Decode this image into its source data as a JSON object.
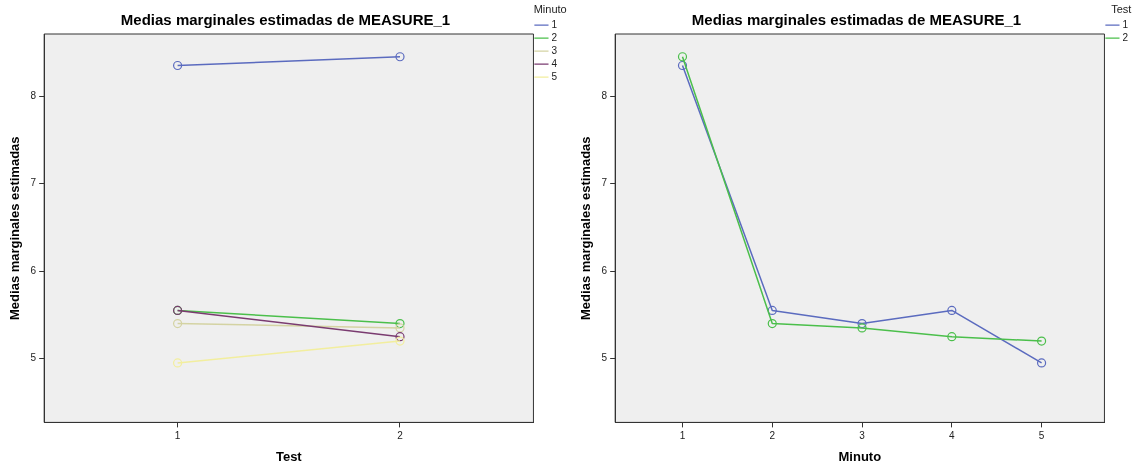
{
  "chart_data": [
    {
      "type": "line",
      "title": "Medias marginales estimadas de MEASURE_1",
      "xlabel": "Test",
      "ylabel": "Medias marginales estimadas",
      "legend_title": "Minuto",
      "x": [
        1,
        2
      ],
      "xlim": [
        0.4,
        2.6
      ],
      "xticks": [
        1,
        2
      ],
      "ylim": [
        4.27,
        8.71
      ],
      "yticks": [
        5,
        6,
        7,
        8
      ],
      "grid": false,
      "legend": "top right",
      "marker": "circle",
      "line_style": "solid",
      "series": [
        {
          "name": "1",
          "color": "#5b6bbf",
          "values": [
            8.35,
            8.45
          ]
        },
        {
          "name": "2",
          "color": "#4bbf4b",
          "values": [
            5.55,
            5.4
          ]
        },
        {
          "name": "3",
          "color": "#d4d3a3",
          "values": [
            5.4,
            5.35
          ]
        },
        {
          "name": "4",
          "color": "#7a3b70",
          "values": [
            5.55,
            5.25
          ]
        },
        {
          "name": "5",
          "color": "#f2ee9e",
          "values": [
            4.95,
            5.2
          ]
        }
      ]
    },
    {
      "type": "line",
      "title": "Medias marginales estimadas de MEASURE_1",
      "xlabel": "Minuto",
      "ylabel": "Medias marginales estimadas",
      "legend_title": "Test",
      "x": [
        1,
        2,
        3,
        4,
        5
      ],
      "xlim": [
        0.25,
        5.7
      ],
      "xticks": [
        1,
        2,
        3,
        4,
        5
      ],
      "ylim": [
        4.27,
        8.71
      ],
      "yticks": [
        5,
        6,
        7,
        8
      ],
      "grid": false,
      "legend": "top right",
      "marker": "circle",
      "line_style": "solid",
      "series": [
        {
          "name": "1",
          "color": "#5b6bbf",
          "values": [
            8.35,
            5.55,
            5.4,
            5.55,
            4.95
          ]
        },
        {
          "name": "2",
          "color": "#4bbf4b",
          "values": [
            8.45,
            5.4,
            5.35,
            5.25,
            5.2
          ]
        }
      ]
    }
  ]
}
